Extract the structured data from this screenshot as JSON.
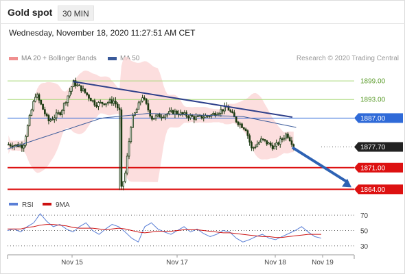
{
  "header": {
    "title": "Gold spot",
    "timeframe": "30 MIN",
    "timestamp": "Wednesday, November 18, 2020 11:27:51 AM CET"
  },
  "legend": {
    "ma20": {
      "label": "MA 20 + Bollinger Bands",
      "color": "#f08f8f"
    },
    "ma50": {
      "label": "MA 50",
      "color": "#3a5a9a"
    },
    "copyright": "Research © 2020 Trading Central"
  },
  "colors": {
    "resistance_green": "#a8d878",
    "pivot_blue": "#2f6ad8",
    "support_red": "#dd1111",
    "current_price_bg": "#222222",
    "candle": "#1c3a12",
    "bollinger_fill": "#fbd6d6",
    "trendline": "#2d3f8a",
    "arrow": "#2d62b4",
    "rsi_line": "#5a7fd6",
    "rsi_ma": "#cc1111"
  },
  "chart_data": [
    {
      "type": "candlestick",
      "title": "Gold spot",
      "x_labels": [
        "Nov 15",
        "Nov 17",
        "Nov 18",
        "Nov 19"
      ],
      "ylim": [
        1861,
        1903
      ],
      "grid": false,
      "price_levels": [
        {
          "value": 1899.0,
          "label": "1899.00",
          "kind": "resistance"
        },
        {
          "value": 1893.0,
          "label": "1893.00",
          "kind": "resistance"
        },
        {
          "value": 1887.0,
          "label": "1887.00",
          "kind": "pivot"
        },
        {
          "value": 1877.7,
          "label": "1877.70",
          "kind": "current"
        },
        {
          "value": 1871.0,
          "label": "1871.00",
          "kind": "support"
        },
        {
          "value": 1864.0,
          "label": "1864.00",
          "kind": "support"
        }
      ],
      "trendline": {
        "from": {
          "t": 0.208,
          "price": 1898.8
        },
        "to": {
          "t": 0.908,
          "price": 1887.3
        }
      },
      "projection_arrow": {
        "from": {
          "t": 0.908,
          "price": 1877.5
        },
        "to": {
          "t": 1.0,
          "price": 1864.0
        }
      },
      "series": [
        {
          "name": "Price",
          "key_points": [
            {
              "t": 0.0,
              "price": 1878.5
            },
            {
              "t": 0.05,
              "price": 1878.0
            },
            {
              "t": 0.07,
              "price": 1887.0
            },
            {
              "t": 0.09,
              "price": 1895.0
            },
            {
              "t": 0.13,
              "price": 1886.0
            },
            {
              "t": 0.17,
              "price": 1889.0
            },
            {
              "t": 0.21,
              "price": 1898.5
            },
            {
              "t": 0.24,
              "price": 1896.0
            },
            {
              "t": 0.28,
              "price": 1891.5
            },
            {
              "t": 0.34,
              "price": 1892.5
            },
            {
              "t": 0.358,
              "price": 1889.0
            },
            {
              "t": 0.362,
              "price": 1863.8
            },
            {
              "t": 0.375,
              "price": 1869.0
            },
            {
              "t": 0.395,
              "price": 1886.0
            },
            {
              "t": 0.43,
              "price": 1894.0
            },
            {
              "t": 0.46,
              "price": 1887.0
            },
            {
              "t": 0.53,
              "price": 1889.0
            },
            {
              "t": 0.6,
              "price": 1887.0
            },
            {
              "t": 0.65,
              "price": 1888.0
            },
            {
              "t": 0.7,
              "price": 1890.5
            },
            {
              "t": 0.73,
              "price": 1886.0
            },
            {
              "t": 0.76,
              "price": 1883.5
            },
            {
              "t": 0.778,
              "price": 1877.0
            },
            {
              "t": 0.81,
              "price": 1880.0
            },
            {
              "t": 0.85,
              "price": 1877.5
            },
            {
              "t": 0.89,
              "price": 1882.0
            },
            {
              "t": 0.915,
              "price": 1877.7
            }
          ]
        },
        {
          "name": "MA 50",
          "key_points": [
            {
              "t": 0.0,
              "price": 1877.0
            },
            {
              "t": 0.15,
              "price": 1882.0
            },
            {
              "t": 0.3,
              "price": 1887.0
            },
            {
              "t": 0.45,
              "price": 1888.5
            },
            {
              "t": 0.6,
              "price": 1888.0
            },
            {
              "t": 0.75,
              "price": 1887.5
            },
            {
              "t": 0.92,
              "price": 1884.0
            }
          ]
        }
      ]
    },
    {
      "type": "line",
      "title": "",
      "legend_entries": [
        "RSI",
        "9MA"
      ],
      "yticks": [
        70,
        50,
        30
      ],
      "ylim": [
        20,
        80
      ],
      "series": [
        {
          "name": "RSI",
          "values": [
            50,
            52,
            48,
            55,
            60,
            72,
            62,
            55,
            58,
            52,
            48,
            55,
            60,
            50,
            45,
            52,
            58,
            55,
            48,
            40,
            35,
            55,
            60,
            52,
            48,
            45,
            50,
            55,
            48,
            52,
            46,
            42,
            45,
            50,
            48,
            40,
            35,
            38,
            42,
            45,
            40,
            38,
            42,
            46,
            50,
            55,
            48,
            42,
            40
          ]
        },
        {
          "name": "9MA",
          "values": [
            52,
            52,
            52,
            54,
            55,
            57,
            58,
            58,
            57,
            56,
            54,
            53,
            53,
            53,
            52,
            51,
            52,
            53,
            52,
            50,
            48,
            47,
            48,
            49,
            49,
            49,
            50,
            51,
            51,
            51,
            50,
            49,
            48,
            47,
            47,
            46,
            45,
            44,
            43,
            42,
            42,
            41,
            41,
            42,
            43,
            44,
            45,
            45,
            45
          ]
        }
      ]
    }
  ]
}
